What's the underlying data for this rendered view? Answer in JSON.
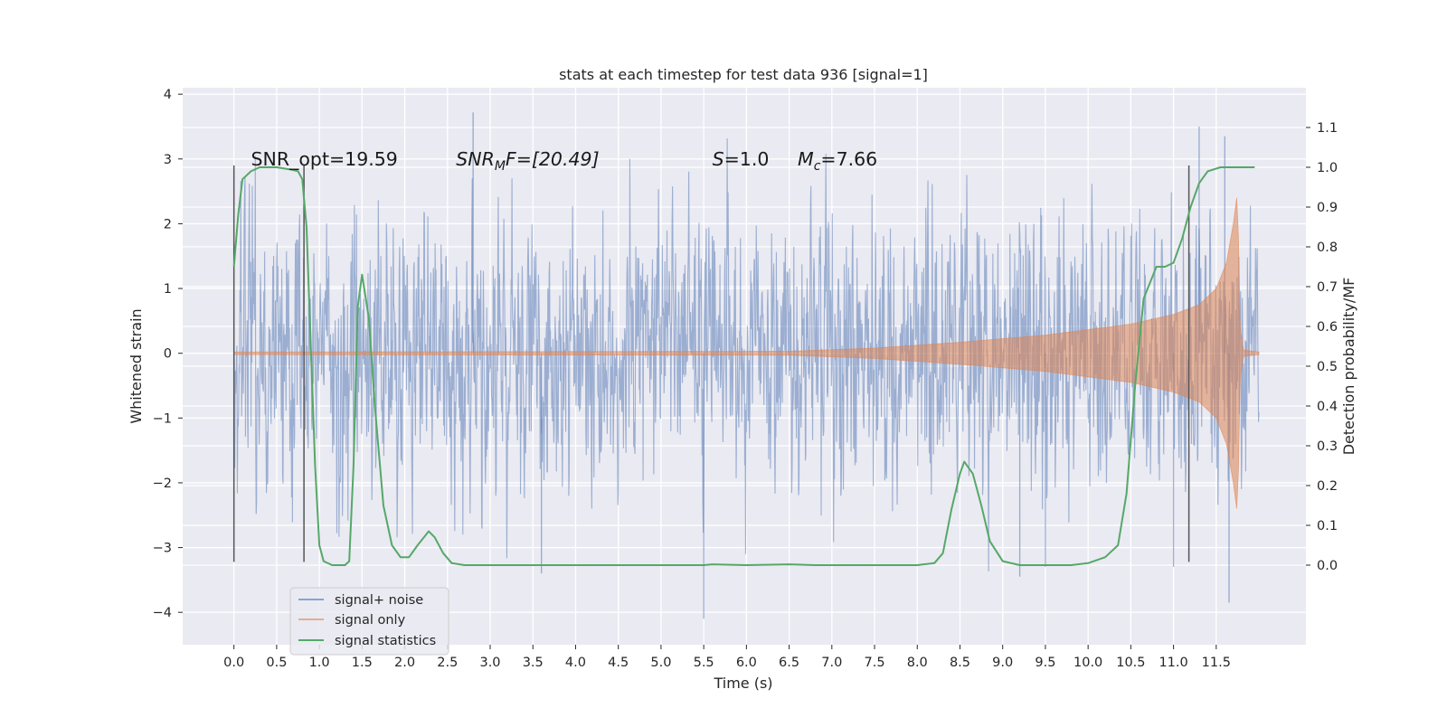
{
  "chart_data": {
    "type": "line",
    "title": "stats at each timestep for test data 936 [signal=1]",
    "xlabel": "Time (s)",
    "ylabel_left": "Whitened strain",
    "ylabel_right": "Detection probability/MF",
    "xlim": [
      -0.6,
      12.55
    ],
    "ylim_left": [
      -4.5,
      4.1
    ],
    "ylim_right": [
      -0.2,
      1.2
    ],
    "x_ticks": [
      "0.0",
      "0.5",
      "1.0",
      "1.5",
      "2.0",
      "2.5",
      "3.0",
      "3.5",
      "4.0",
      "4.5",
      "5.0",
      "5.5",
      "6.0",
      "6.5",
      "7.0",
      "7.5",
      "8.0",
      "8.5",
      "9.0",
      "9.5",
      "10.0",
      "10.5",
      "11.0",
      "11.5"
    ],
    "y_ticks_left": [
      "4",
      "3",
      "2",
      "1",
      "0",
      "−1",
      "−2",
      "−3",
      "−4"
    ],
    "y_ticks_right": [
      "1.1",
      "1.0",
      "0.9",
      "0.8",
      "0.7",
      "0.6",
      "0.5",
      "0.4",
      "0.3",
      "0.2",
      "0.1",
      "0.0"
    ],
    "grid": true,
    "legend_position": "lower-left",
    "annotations": [
      {
        "text": "SNR_opt=19.59",
        "x": 0.2,
        "y": 3.0
      },
      {
        "text": "SNR_MF=[20.49]",
        "base": "SNR",
        "sub": "M",
        "rest": "F=[20.49]",
        "x": 2.6,
        "y": 3.0
      },
      {
        "text": "S=1.0",
        "base": "S",
        "rest": "=1.0",
        "x": 5.6,
        "y": 3.0
      },
      {
        "text": "M_c=7.66",
        "base": "M",
        "sub": "c",
        "rest": "=7.66",
        "x": 6.6,
        "y": 3.0
      }
    ],
    "vertical_lines": [
      {
        "x": 0.0,
        "ymin": -3.22,
        "ymax": 2.9
      },
      {
        "x": 0.82,
        "ymin": -3.22,
        "ymax": 2.9
      },
      {
        "x": 11.18,
        "ymin": -3.22,
        "ymax": 2.9
      }
    ],
    "series": [
      {
        "name": "signal+ noise",
        "color": "#4c72b0",
        "axis": "left",
        "kind": "noise",
        "x_range": [
          0.0,
          12.0
        ],
        "envelope_std": 0.95,
        "extremes": [
          {
            "x": 2.8,
            "y": 3.72
          },
          {
            "x": 11.3,
            "y": 3.5
          },
          {
            "x": 11.6,
            "y": 3.35
          },
          {
            "x": 5.5,
            "y": -4.1
          },
          {
            "x": 11.65,
            "y": -3.85
          },
          {
            "x": 9.2,
            "y": -3.45
          },
          {
            "x": 3.6,
            "y": -3.4
          },
          {
            "x": 11.0,
            "y": -3.3
          },
          {
            "x": 9.5,
            "y": -3.3
          }
        ]
      },
      {
        "name": "signal only",
        "color": "#dd8452",
        "axis": "left",
        "kind": "chirp",
        "x_range": [
          0.0,
          12.0
        ],
        "merger_time": 11.75,
        "envelope": [
          {
            "x": 0.0,
            "y": 0.02
          },
          {
            "x": 6.5,
            "y": 0.03
          },
          {
            "x": 7.5,
            "y": 0.08
          },
          {
            "x": 8.5,
            "y": 0.17
          },
          {
            "x": 9.5,
            "y": 0.28
          },
          {
            "x": 10.5,
            "y": 0.45
          },
          {
            "x": 11.0,
            "y": 0.6
          },
          {
            "x": 11.3,
            "y": 0.75
          },
          {
            "x": 11.5,
            "y": 1.0
          },
          {
            "x": 11.62,
            "y": 1.4
          },
          {
            "x": 11.7,
            "y": 2.0
          },
          {
            "x": 11.75,
            "y": 2.5
          },
          {
            "x": 11.78,
            "y": 0.4
          },
          {
            "x": 11.82,
            "y": 0.05
          },
          {
            "x": 12.0,
            "y": 0.02
          }
        ]
      },
      {
        "name": "signal statistics",
        "color": "#55a868",
        "axis": "right",
        "kind": "line",
        "points": [
          [
            0.0,
            0.75
          ],
          [
            0.05,
            0.88
          ],
          [
            0.1,
            0.97
          ],
          [
            0.2,
            0.99
          ],
          [
            0.3,
            1.0
          ],
          [
            0.5,
            1.0
          ],
          [
            0.65,
            0.995
          ],
          [
            0.75,
            0.99
          ],
          [
            0.8,
            0.97
          ],
          [
            0.85,
            0.85
          ],
          [
            0.9,
            0.55
          ],
          [
            0.95,
            0.25
          ],
          [
            1.0,
            0.05
          ],
          [
            1.05,
            0.01
          ],
          [
            1.15,
            0.0
          ],
          [
            1.3,
            0.0
          ],
          [
            1.35,
            0.01
          ],
          [
            1.4,
            0.25
          ],
          [
            1.45,
            0.65
          ],
          [
            1.5,
            0.73
          ],
          [
            1.58,
            0.62
          ],
          [
            1.65,
            0.4
          ],
          [
            1.75,
            0.15
          ],
          [
            1.85,
            0.05
          ],
          [
            1.95,
            0.02
          ],
          [
            2.05,
            0.02
          ],
          [
            2.15,
            0.05
          ],
          [
            2.28,
            0.085
          ],
          [
            2.35,
            0.07
          ],
          [
            2.45,
            0.03
          ],
          [
            2.55,
            0.005
          ],
          [
            2.7,
            0.0
          ],
          [
            5.5,
            0.0
          ],
          [
            5.6,
            0.002
          ],
          [
            6.0,
            0.0
          ],
          [
            6.5,
            0.002
          ],
          [
            6.8,
            0.0
          ],
          [
            8.0,
            0.0
          ],
          [
            8.2,
            0.005
          ],
          [
            8.3,
            0.03
          ],
          [
            8.4,
            0.14
          ],
          [
            8.5,
            0.23
          ],
          [
            8.55,
            0.26
          ],
          [
            8.65,
            0.23
          ],
          [
            8.75,
            0.15
          ],
          [
            8.85,
            0.06
          ],
          [
            9.0,
            0.01
          ],
          [
            9.2,
            0.0
          ],
          [
            9.8,
            0.0
          ],
          [
            10.0,
            0.005
          ],
          [
            10.2,
            0.02
          ],
          [
            10.35,
            0.05
          ],
          [
            10.45,
            0.18
          ],
          [
            10.55,
            0.45
          ],
          [
            10.65,
            0.67
          ],
          [
            10.8,
            0.75
          ],
          [
            10.9,
            0.75
          ],
          [
            11.0,
            0.76
          ],
          [
            11.1,
            0.82
          ],
          [
            11.2,
            0.9
          ],
          [
            11.3,
            0.96
          ],
          [
            11.4,
            0.99
          ],
          [
            11.55,
            1.0
          ],
          [
            11.95,
            1.0
          ]
        ]
      }
    ]
  }
}
